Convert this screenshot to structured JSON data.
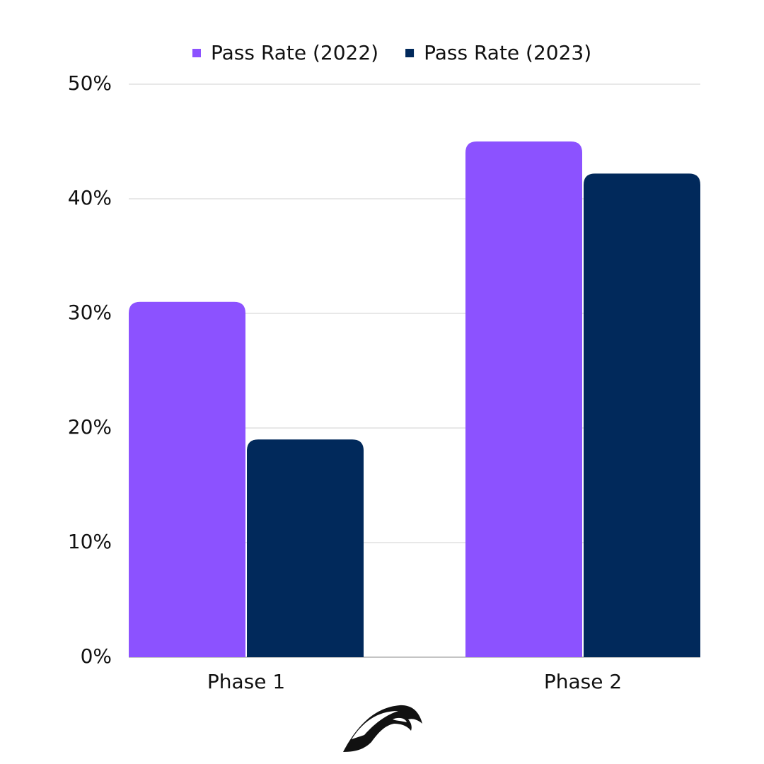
{
  "chart_data": {
    "type": "bar",
    "categories": [
      "Phase 1",
      "Phase 2"
    ],
    "series": [
      {
        "name": "Pass Rate (2022)",
        "color": "#8c52ff",
        "values": [
          31,
          45
        ]
      },
      {
        "name": "Pass Rate (2023)",
        "color": "#01295b",
        "values": [
          19,
          42.2
        ]
      }
    ],
    "ylim": [
      0,
      50
    ],
    "yticks": [
      {
        "value": 0,
        "label": "0%"
      },
      {
        "value": 10,
        "label": "10%"
      },
      {
        "value": 20,
        "label": "20%"
      },
      {
        "value": 30,
        "label": "30%"
      },
      {
        "value": 40,
        "label": "40%"
      },
      {
        "value": 50,
        "label": "50%"
      }
    ],
    "grid": true,
    "legend": "top"
  }
}
